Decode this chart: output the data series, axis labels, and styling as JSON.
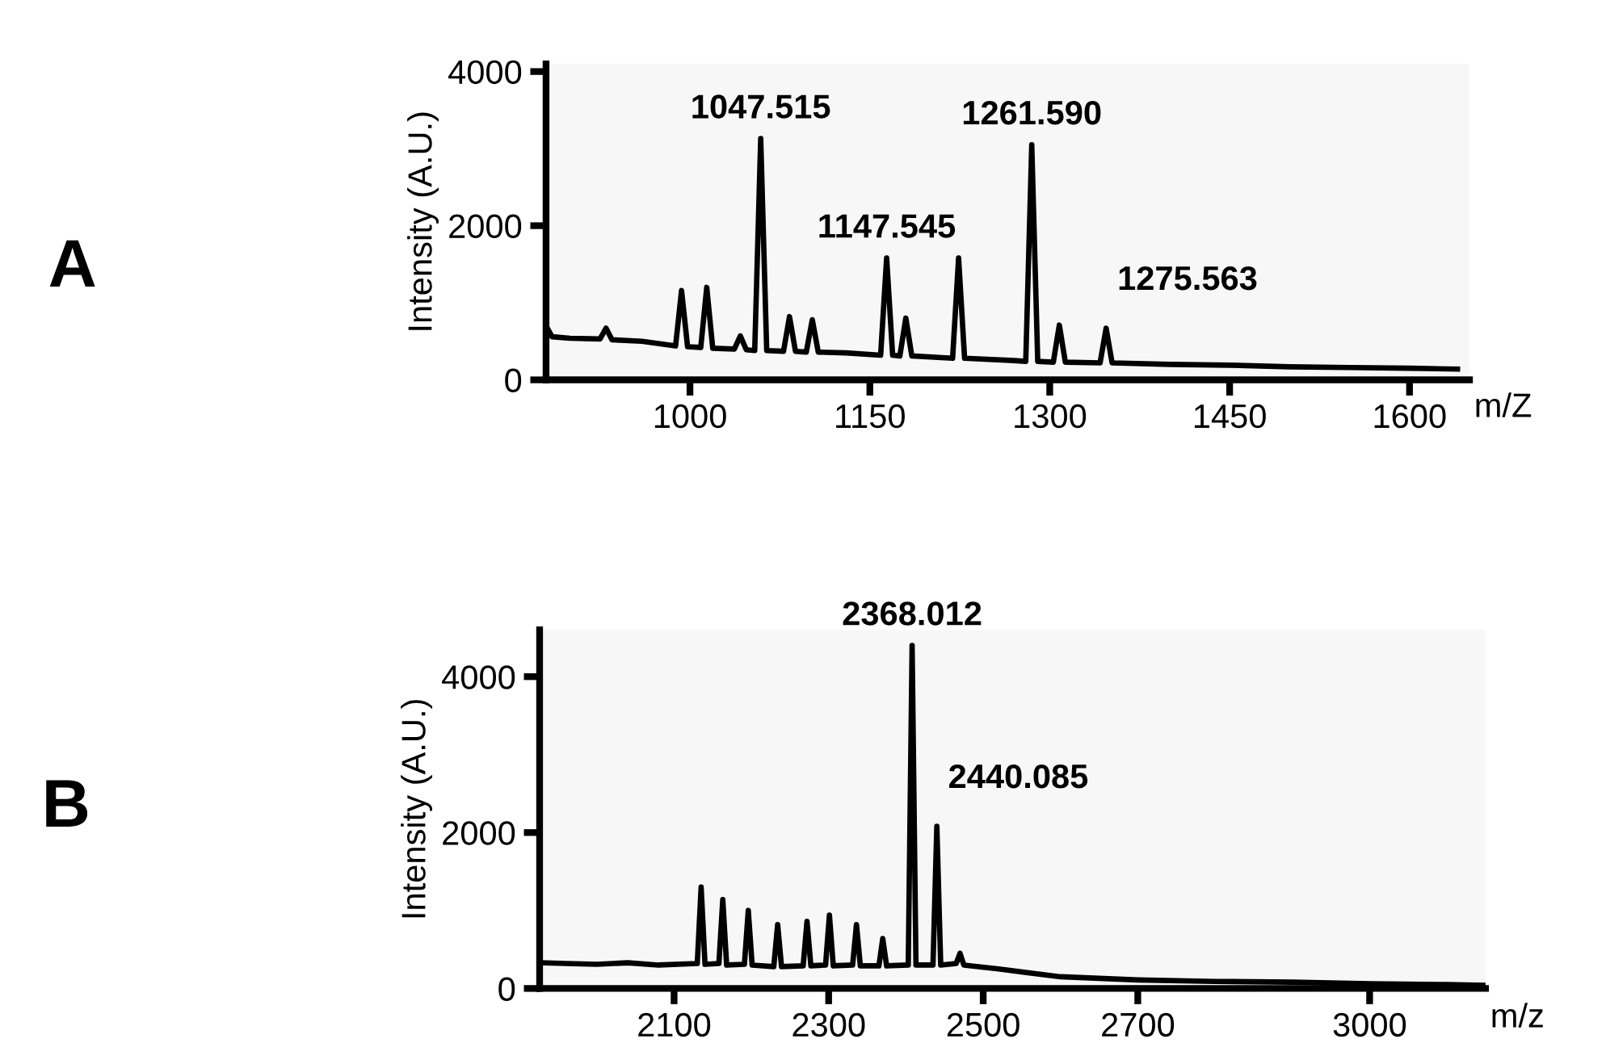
{
  "chart_data": [
    {
      "type": "line",
      "title": "A",
      "ylabel": "Intensity (A.U.)",
      "xlabel": "m/Z",
      "xlim": [
        880,
        1650
      ],
      "ylim": [
        0,
        4100
      ],
      "xticks": [
        1000,
        1150,
        1300,
        1450,
        1600
      ],
      "yticks": [
        0,
        2000,
        4000
      ],
      "grid": false,
      "legend": false,
      "marker": "none",
      "line_style": "solid",
      "series": [
        {
          "color": "#000000",
          "x": [
            880,
            885,
            900,
            925,
            930,
            935,
            960,
            988,
            993,
            998,
            1009,
            1014,
            1019,
            1037,
            1042,
            1047,
            1054,
            1059,
            1064,
            1078,
            1083,
            1088,
            1097,
            1102,
            1107,
            1130,
            1159,
            1164,
            1169,
            1175,
            1180,
            1185,
            1219,
            1224,
            1229,
            1270,
            1280,
            1285,
            1290,
            1303,
            1308,
            1313,
            1342,
            1347,
            1352,
            1400,
            1450,
            1500,
            1550,
            1600,
            1640
          ],
          "values": [
            700,
            560,
            540,
            530,
            670,
            520,
            500,
            440,
            1160,
            430,
            420,
            1200,
            410,
            400,
            570,
            390,
            380,
            3130,
            380,
            370,
            820,
            370,
            360,
            780,
            360,
            350,
            320,
            1580,
            320,
            310,
            800,
            310,
            280,
            1580,
            280,
            250,
            240,
            3050,
            240,
            230,
            710,
            230,
            220,
            670,
            220,
            200,
            190,
            170,
            160,
            150,
            140
          ]
        }
      ],
      "annotations": [
        {
          "text": "1047.515",
          "x": 1059,
          "y": 3130
        },
        {
          "text": "1147.545",
          "x": 1164,
          "y": 1580
        },
        {
          "text": "1261.590",
          "x": 1285,
          "y": 3050
        },
        {
          "text": "1275.563",
          "x": 1347,
          "y": 670
        }
      ]
    },
    {
      "type": "line",
      "title": "B",
      "ylabel": "Intensity (A.U.)",
      "xlabel": "m/z",
      "xlim": [
        1926,
        3150
      ],
      "ylim": [
        0,
        4600
      ],
      "xticks": [
        2100,
        2300,
        2500,
        2700,
        3000
      ],
      "yticks": [
        0,
        2000,
        4000
      ],
      "grid": false,
      "legend": false,
      "marker": "none",
      "line_style": "solid",
      "series": [
        {
          "color": "#000000",
          "x": [
            1926,
            1960,
            2000,
            2040,
            2080,
            2130,
            2135,
            2140,
            2158,
            2163,
            2168,
            2191,
            2196,
            2201,
            2229,
            2234,
            2239,
            2267,
            2272,
            2277,
            2296,
            2301,
            2306,
            2331,
            2336,
            2341,
            2365,
            2370,
            2375,
            2403,
            2408,
            2413,
            2435,
            2440,
            2445,
            2465,
            2470,
            2475,
            2520,
            2600,
            2700,
            2800,
            2900,
            3000,
            3100,
            3150
          ],
          "values": [
            330,
            320,
            310,
            330,
            300,
            320,
            1300,
            310,
            320,
            1140,
            300,
            310,
            1000,
            300,
            280,
            820,
            280,
            290,
            860,
            290,
            300,
            940,
            290,
            300,
            820,
            290,
            290,
            640,
            290,
            300,
            4400,
            300,
            300,
            2080,
            300,
            320,
            450,
            300,
            250,
            150,
            110,
            90,
            80,
            60,
            50,
            40
          ]
        }
      ],
      "annotations": [
        {
          "text": "2368.012",
          "x": 2408,
          "y": 4400
        },
        {
          "text": "2440.085",
          "x": 2440,
          "y": 2080
        }
      ]
    }
  ]
}
